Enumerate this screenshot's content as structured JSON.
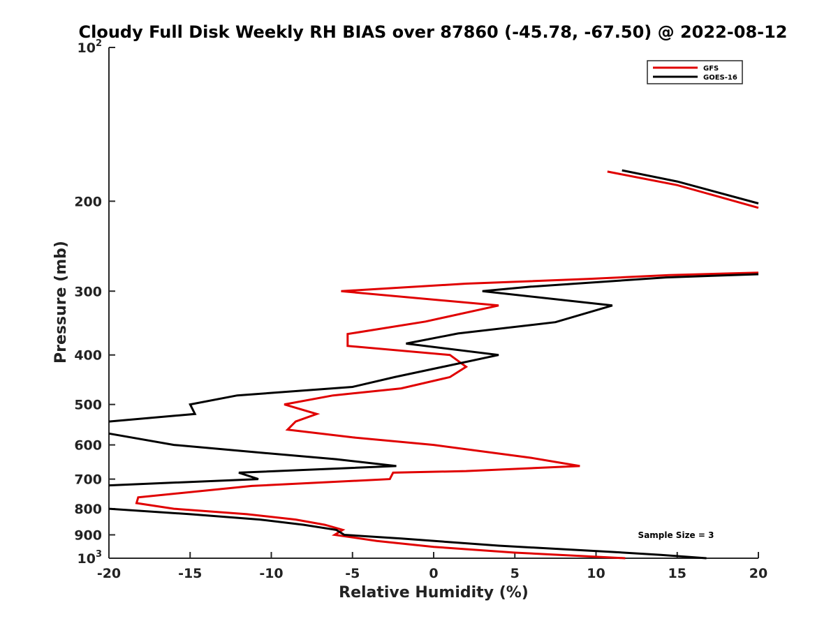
{
  "chart_data": {
    "type": "line",
    "title": "Cloudy Full Disk Weekly RH BIAS over 87860 (-45.78, -67.50) @ 2022-08-12",
    "xlabel": "Relative Humidity (%)",
    "ylabel": "Pressure (mb)",
    "xlim": [
      -20,
      20
    ],
    "ylim": [
      100,
      1000
    ],
    "y_scale": "log",
    "y_reversed": true,
    "grid": false,
    "legend_position": "top-right",
    "x_ticks": [
      "-20",
      "-15",
      "-10",
      "-5",
      "0",
      "5",
      "10",
      "15",
      "20"
    ],
    "y_ticks": [
      {
        "value": 100,
        "base": "10",
        "exp": "2"
      },
      {
        "value": 200,
        "label": "200"
      },
      {
        "value": 300,
        "label": "300"
      },
      {
        "value": 400,
        "label": "400"
      },
      {
        "value": 500,
        "label": "500"
      },
      {
        "value": 600,
        "label": "600"
      },
      {
        "value": 700,
        "label": "700"
      },
      {
        "value": 800,
        "label": "800"
      },
      {
        "value": 900,
        "label": "900"
      },
      {
        "value": 1000,
        "base": "10",
        "exp": "3"
      }
    ],
    "series": [
      {
        "name": "GFS",
        "color": "#e00000",
        "segments": [
          [
            [
              10.7,
              175
            ],
            [
              15,
              186
            ],
            [
              20,
              206
            ]
          ],
          [
            [
              20,
              276
            ],
            [
              14.5,
              279
            ],
            [
              9.5,
              284
            ],
            [
              2,
              290
            ],
            [
              -5.7,
              300
            ],
            [
              4,
              320
            ],
            [
              -0.5,
              344
            ],
            [
              -5.3,
              364
            ],
            [
              -5.3,
              384
            ],
            [
              1,
              400
            ],
            [
              2,
              422
            ],
            [
              1,
              442
            ],
            [
              -2,
              465
            ],
            [
              -6.2,
              480
            ],
            [
              -9.2,
              500
            ],
            [
              -7.2,
              522
            ],
            [
              -8.5,
              540
            ],
            [
              -9,
              560
            ],
            [
              -5,
              580
            ],
            [
              0,
              600
            ],
            [
              6,
              636
            ],
            [
              9,
              660
            ],
            [
              2,
              675
            ],
            [
              -2.5,
              680
            ],
            [
              -2.7,
              700
            ],
            [
              -11.2,
              722
            ],
            [
              -18.2,
              760
            ],
            [
              -18.3,
              780
            ],
            [
              -16,
              800
            ],
            [
              -11.5,
              820
            ],
            [
              -8.5,
              840
            ],
            [
              -6.7,
              860
            ],
            [
              -5.6,
              880
            ],
            [
              -6.1,
              900
            ],
            [
              -3.5,
              925
            ],
            [
              0,
              950
            ],
            [
              5,
              975
            ],
            [
              11.8,
              1000
            ]
          ]
        ]
      },
      {
        "name": "GOES-16",
        "color": "#000000",
        "segments": [
          [
            [
              11.6,
              174
            ],
            [
              15,
              183
            ],
            [
              20,
              202
            ]
          ],
          [
            [
              20,
              278
            ],
            [
              14.3,
              282
            ],
            [
              6,
              294
            ],
            [
              3,
              300
            ],
            [
              11,
              320
            ],
            [
              7.5,
              345
            ],
            [
              1.5,
              363
            ],
            [
              -1.7,
              380
            ],
            [
              4,
              400
            ],
            [
              -2.4,
              442
            ],
            [
              -5,
              462
            ],
            [
              -12.1,
              480
            ],
            [
              -15,
              500
            ],
            [
              -14.7,
              522
            ],
            [
              -20,
              540
            ]
          ],
          [
            [
              -20,
              570
            ],
            [
              -16,
              600
            ],
            [
              -11,
              620
            ],
            [
              -6,
              640
            ],
            [
              -2.3,
              660
            ],
            [
              -12,
              680
            ],
            [
              -10.8,
              700
            ],
            [
              -20,
              720
            ]
          ],
          [
            [
              -20,
              800
            ],
            [
              -15,
              820
            ],
            [
              -10.7,
              840
            ],
            [
              -8,
              860
            ],
            [
              -6,
              880
            ],
            [
              -5.5,
              900
            ],
            [
              -2,
              915
            ],
            [
              4,
              945
            ],
            [
              11,
              972
            ],
            [
              14,
              985
            ],
            [
              16.8,
              1000
            ]
          ]
        ]
      }
    ],
    "annotations": [
      "Sample Size = 3"
    ]
  }
}
